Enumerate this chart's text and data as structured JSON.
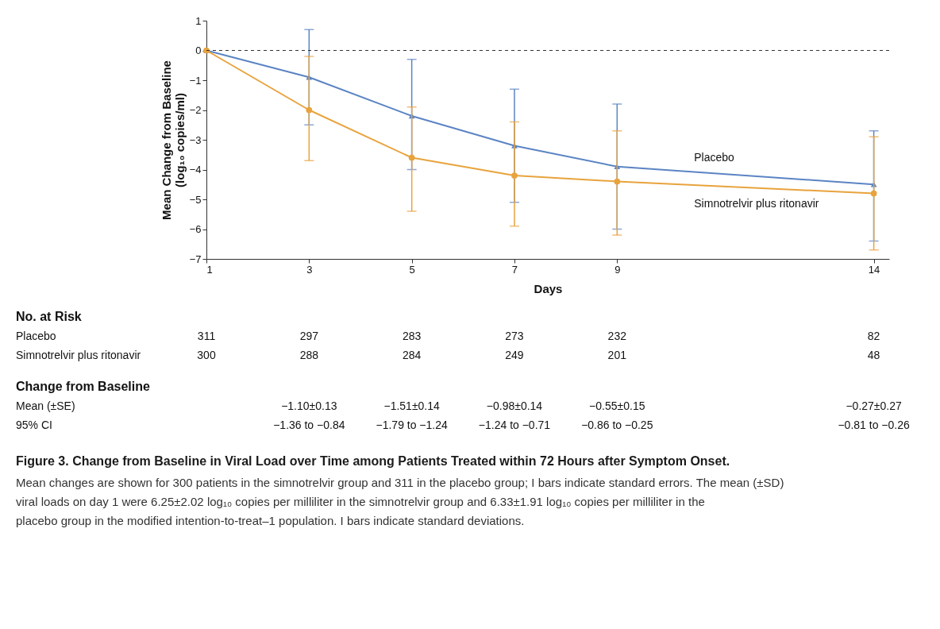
{
  "chart_data": {
    "type": "line",
    "title": "Figure 3. Change from Baseline in Viral Load over Time among Patients Treated within 72 Hours after Symptom Onset.",
    "subtitle": "Mean changes are shown for 300 patients in the simnotrelvir group and 311 in the placebo group; I bars indicate standard errors. The mean (±SD) viral loads on day 1 were 6.25±2.02 log₁₀ copies per milliliter in the simnotrelvir group and 6.33±1.91 log₁₀ copies per milliliter in the placebo group in the modified intention-to-treat–1 population. I bars indicate standard deviations.",
    "xlabel": "Days",
    "ylabel": "Mean Change from Baseline (log₁₀ copies/ml)",
    "x": [
      1,
      3,
      5,
      7,
      9,
      14
    ],
    "series": [
      {
        "name": "Placebo",
        "color": "#5b84c4",
        "marker": "triangle",
        "values": [
          0,
          -0.9,
          -2.2,
          -3.2,
          -3.9,
          -4.5
        ],
        "errors": [
          null,
          [
            -2.5,
            0.7
          ],
          [
            -4.0,
            -0.3
          ],
          [
            -5.1,
            -1.3
          ],
          [
            -6.0,
            -1.8
          ],
          [
            -6.4,
            -2.7
          ]
        ]
      },
      {
        "name": "Simnotrelvir plus ritonavir",
        "color": "#e8a33d",
        "marker": "circle",
        "values": [
          0,
          -2.0,
          -3.6,
          -4.2,
          -4.4,
          -4.8
        ],
        "errors": [
          null,
          [
            -3.7,
            -0.2
          ],
          [
            -5.4,
            -1.9
          ],
          [
            -5.9,
            -2.4
          ],
          [
            -6.2,
            -2.7
          ],
          [
            -6.7,
            -2.9
          ]
        ]
      }
    ],
    "xlim": [
      1,
      14.3
    ],
    "xticks": [
      1,
      3,
      5,
      7,
      9,
      14
    ],
    "ylim": [
      -7,
      1
    ],
    "yticks": [
      1,
      0,
      -1,
      -2,
      -3,
      -4,
      -5,
      -6,
      -7
    ],
    "grid": false,
    "line_style": "solid",
    "ref_lines": [
      {
        "axis": "y",
        "value": 0,
        "color": "#333333",
        "line_style": "dashed"
      }
    ],
    "annotations": [
      "No. at Risk",
      "Placebo",
      "311",
      "297",
      "283",
      "273",
      "232",
      "82",
      "Simnotrelvir plus ritonavir",
      "300",
      "288",
      "284",
      "249",
      "201",
      "48",
      "Change from Baseline",
      "Mean (±SE)",
      "−1.10±0.13",
      "−1.51±0.14",
      "−0.98±0.14",
      "−0.55±0.15",
      "−0.27±0.27",
      "95% CI",
      "−1.36 to −0.84",
      "−1.79 to −1.24",
      "−1.24 to −0.71",
      "−0.86 to −0.25",
      "−0.81 to −0.26"
    ]
  }
}
